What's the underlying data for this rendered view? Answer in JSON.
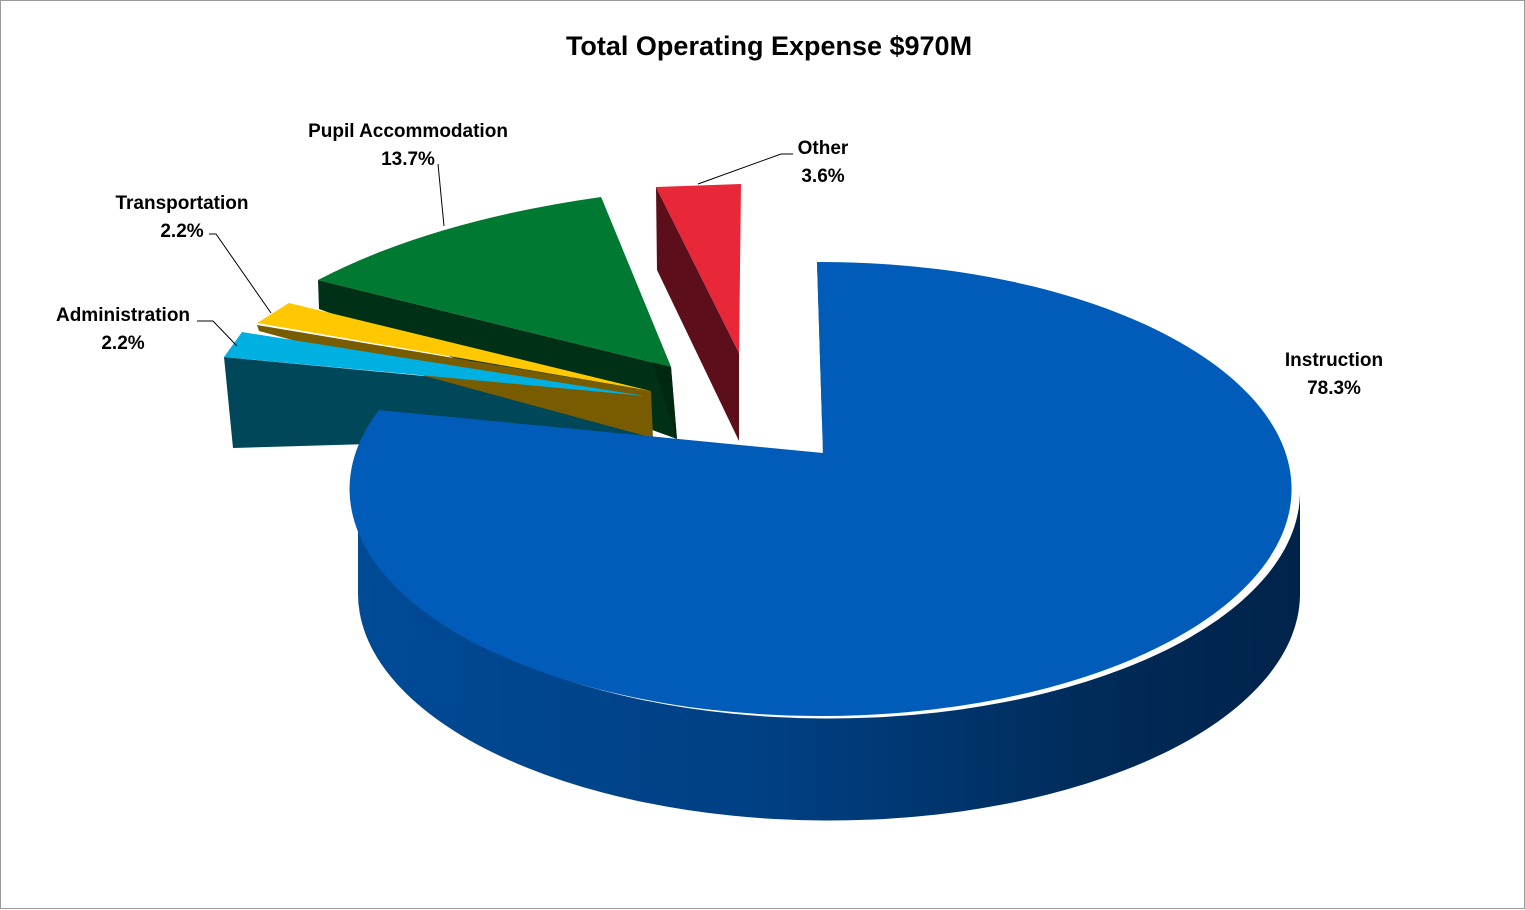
{
  "chart_data": {
    "type": "pie",
    "title": "Total Operating Expense $970M",
    "slices": [
      {
        "name": "Instruction",
        "value": 78.3,
        "label": "78.3%",
        "color": "#005cb8"
      },
      {
        "name": "Administration",
        "value": 2.2,
        "label": "2.2%",
        "color": "#00b0e0"
      },
      {
        "name": "Transportation",
        "value": 2.2,
        "label": "2.2%",
        "color": "#ffc800"
      },
      {
        "name": "Pupil Accommodation",
        "value": 13.7,
        "label": "13.7%",
        "color": "#007a33"
      },
      {
        "name": "Other",
        "value": 3.6,
        "label": "3.6%",
        "color": "#e82838"
      }
    ],
    "style": "3d-exploded"
  }
}
